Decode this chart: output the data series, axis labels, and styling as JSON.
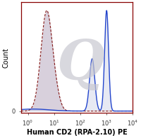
{
  "title": "Human CD2 (RPA-2.10) PE",
  "ylabel": "Count",
  "xlim": [
    0.55,
    10000
  ],
  "ylim": [
    -0.02,
    1.08
  ],
  "background_color": "#ffffff",
  "watermark_color": "#c8c8d0",
  "solid_line_color": "#2244cc",
  "dashed_line_color": "#882222",
  "iso_fill_color": "#d8d0dc",
  "cd2_fill_color": "#d0d4e8",
  "spine_color": "#880000",
  "xlabel_fontsize": 7.0,
  "ylabel_fontsize": 7.0,
  "tick_fontsize": 6.0,
  "iso_peak_log": 0.72,
  "iso_sigma": 0.22,
  "cd2_peak1_log": 3.0,
  "cd2_peak1_sigma": 0.075,
  "cd2_peak1_amp": 1.0,
  "cd2_peak2_log": 2.45,
  "cd2_peak2_sigma": 0.1,
  "cd2_peak2_amp": 0.52
}
